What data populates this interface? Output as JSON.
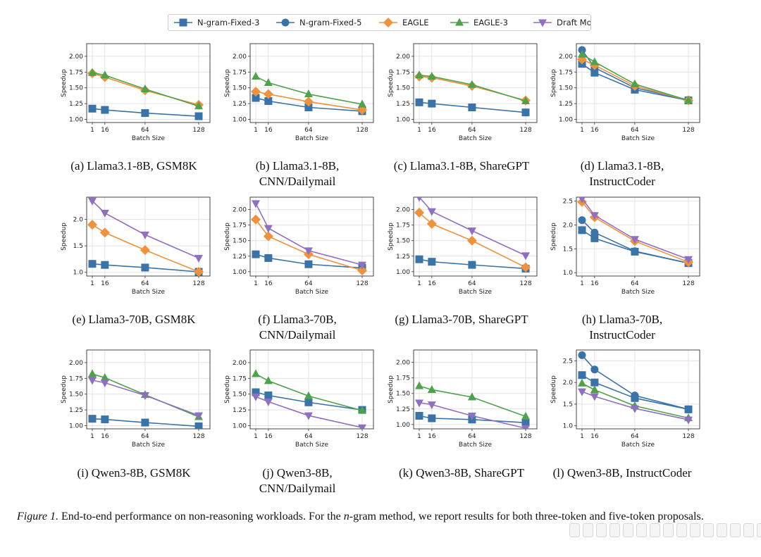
{
  "legend": [
    {
      "name": "N-gram-Fixed-3",
      "color": "#3a73a8",
      "marker": "square"
    },
    {
      "name": "N-gram-Fixed-5",
      "color": "#3a73a8",
      "marker": "circle"
    },
    {
      "name": "EAGLE",
      "color": "#f0913b",
      "marker": "diamond"
    },
    {
      "name": "EAGLE-3",
      "color": "#4da24a",
      "marker": "triangle-up"
    },
    {
      "name": "Draft Model",
      "color": "#8f6fc0",
      "marker": "triangle-down"
    }
  ],
  "chart_data": [
    {
      "type": "line",
      "subcaption": [
        "(a) Llama3.1-8B, GSM8K"
      ],
      "xlabel": "Batch Size",
      "ylabel": "Speedup",
      "x": [
        1,
        16,
        64,
        128
      ],
      "xticks": [
        "1",
        "16",
        "64",
        "128"
      ],
      "yticks": [
        "1.00",
        "1.25",
        "1.50",
        "1.75",
        "2.00"
      ],
      "ylim": [
        0.95,
        2.2
      ],
      "series": [
        {
          "name": "N-gram-Fixed-3",
          "values": [
            1.17,
            1.15,
            1.1,
            1.05
          ]
        },
        {
          "name": "EAGLE",
          "values": [
            1.73,
            1.67,
            1.46,
            1.23
          ]
        },
        {
          "name": "EAGLE-3",
          "values": [
            1.74,
            1.7,
            1.48,
            1.21
          ]
        }
      ]
    },
    {
      "type": "line",
      "subcaption": [
        "(b) Llama3.1-8B,",
        "CNN/Dailymail"
      ],
      "xlabel": "Batch Size",
      "ylabel": "Speedup",
      "x": [
        1,
        16,
        64,
        128
      ],
      "xticks": [
        "1",
        "16",
        "64",
        "128"
      ],
      "yticks": [
        "1.00",
        "1.25",
        "1.50",
        "1.75",
        "2.00"
      ],
      "ylim": [
        0.95,
        2.2
      ],
      "series": [
        {
          "name": "N-gram-Fixed-3",
          "values": [
            1.34,
            1.29,
            1.19,
            1.13
          ]
        },
        {
          "name": "EAGLE",
          "values": [
            1.44,
            1.4,
            1.28,
            1.15
          ]
        },
        {
          "name": "EAGLE-3",
          "values": [
            1.68,
            1.58,
            1.4,
            1.24
          ]
        }
      ]
    },
    {
      "type": "line",
      "subcaption": [
        "(c) Llama3.1-8B, ShareGPT"
      ],
      "xlabel": "Batch Size",
      "ylabel": "Speedup",
      "x": [
        1,
        16,
        64,
        128
      ],
      "xticks": [
        "1",
        "16",
        "64",
        "128"
      ],
      "yticks": [
        "1.00",
        "1.25",
        "1.50",
        "1.75",
        "2.00"
      ],
      "ylim": [
        0.95,
        2.2
      ],
      "series": [
        {
          "name": "N-gram-Fixed-3",
          "values": [
            1.27,
            1.25,
            1.19,
            1.11
          ]
        },
        {
          "name": "EAGLE",
          "values": [
            1.68,
            1.66,
            1.53,
            1.3
          ]
        },
        {
          "name": "EAGLE-3",
          "values": [
            1.7,
            1.68,
            1.55,
            1.29
          ]
        }
      ]
    },
    {
      "type": "line",
      "subcaption": [
        "(d) Llama3.1-8B,",
        "InstructCoder"
      ],
      "xlabel": "Batch Size",
      "ylabel": "Speedup",
      "x": [
        1,
        16,
        64,
        128
      ],
      "xticks": [
        "1",
        "16",
        "64",
        "128"
      ],
      "yticks": [
        "1.00",
        "1.25",
        "1.50",
        "1.75",
        "2.00"
      ],
      "ylim": [
        0.95,
        2.2
      ],
      "series": [
        {
          "name": "N-gram-Fixed-3",
          "values": [
            1.88,
            1.74,
            1.47,
            1.3
          ]
        },
        {
          "name": "N-gram-Fixed-5",
          "values": [
            2.1,
            1.82,
            1.5,
            1.31
          ]
        },
        {
          "name": "EAGLE",
          "values": [
            1.95,
            1.86,
            1.53,
            1.3
          ]
        },
        {
          "name": "EAGLE-3",
          "values": [
            2.03,
            1.91,
            1.56,
            1.3
          ]
        }
      ]
    },
    {
      "type": "line",
      "subcaption": [
        "(e) Llama3-70B, GSM8K"
      ],
      "xlabel": "Batch Size",
      "ylabel": "Speedup",
      "x": [
        1,
        16,
        64,
        128
      ],
      "xticks": [
        "1",
        "16",
        "64",
        "128"
      ],
      "yticks": [
        "1.0",
        "1.5",
        "2.0"
      ],
      "ylim": [
        0.93,
        2.42
      ],
      "series": [
        {
          "name": "N-gram-Fixed-3",
          "values": [
            1.16,
            1.14,
            1.09,
            1.01
          ]
        },
        {
          "name": "EAGLE",
          "values": [
            1.9,
            1.75,
            1.42,
            1.01
          ]
        },
        {
          "name": "Draft Model",
          "values": [
            2.35,
            2.12,
            1.71,
            1.27
          ]
        }
      ]
    },
    {
      "type": "line",
      "subcaption": [
        "(f) Llama3-70B,",
        "CNN/Dailymail"
      ],
      "xlabel": "Batch Size",
      "ylabel": "Speedup",
      "x": [
        1,
        16,
        64,
        128
      ],
      "xticks": [
        "1",
        "16",
        "64",
        "128"
      ],
      "yticks": [
        "1.00",
        "1.25",
        "1.50",
        "1.75",
        "2.00"
      ],
      "ylim": [
        0.93,
        2.2
      ],
      "series": [
        {
          "name": "N-gram-Fixed-3",
          "values": [
            1.28,
            1.22,
            1.12,
            1.06
          ]
        },
        {
          "name": "EAGLE",
          "values": [
            1.84,
            1.57,
            1.28,
            1.02
          ]
        },
        {
          "name": "Draft Model",
          "values": [
            2.1,
            1.7,
            1.34,
            1.11
          ]
        }
      ]
    },
    {
      "type": "line",
      "subcaption": [
        "(g) Llama3-70B, ShareGPT"
      ],
      "xlabel": "Batch Size",
      "ylabel": "Speedup",
      "x": [
        1,
        16,
        64,
        128
      ],
      "xticks": [
        "1",
        "16",
        "64",
        "128"
      ],
      "yticks": [
        "1.00",
        "1.25",
        "1.50",
        "1.75",
        "2.00"
      ],
      "ylim": [
        0.93,
        2.2
      ],
      "series": [
        {
          "name": "N-gram-Fixed-3",
          "values": [
            1.2,
            1.16,
            1.11,
            1.05
          ]
        },
        {
          "name": "EAGLE",
          "values": [
            1.95,
            1.77,
            1.5,
            1.07
          ]
        },
        {
          "name": "Draft Model",
          "values": [
            2.2,
            1.97,
            1.66,
            1.26
          ]
        }
      ]
    },
    {
      "type": "line",
      "subcaption": [
        "(h) Llama3-70B,",
        "InstructCoder"
      ],
      "xlabel": "Batch Size",
      "ylabel": "Speedup",
      "x": [
        1,
        16,
        64,
        128
      ],
      "xticks": [
        "1",
        "16",
        "64",
        "128"
      ],
      "yticks": [
        "1.0",
        "1.5",
        "2.0",
        "2.5"
      ],
      "ylim": [
        0.93,
        2.58
      ],
      "series": [
        {
          "name": "N-gram-Fixed-3",
          "values": [
            1.89,
            1.72,
            1.44,
            1.2
          ]
        },
        {
          "name": "N-gram-Fixed-5",
          "values": [
            2.1,
            1.84,
            1.45,
            1.2
          ]
        },
        {
          "name": "EAGLE",
          "values": [
            2.48,
            2.16,
            1.66,
            1.22
          ]
        },
        {
          "name": "Draft Model",
          "values": [
            2.55,
            2.2,
            1.7,
            1.28
          ]
        }
      ]
    },
    {
      "type": "line",
      "subcaption": [
        "(i) Qwen3-8B, GSM8K"
      ],
      "xlabel": "Batch Size",
      "ylabel": "Speedup",
      "x": [
        1,
        16,
        64,
        128
      ],
      "xticks": [
        "1",
        "16",
        "64",
        "128"
      ],
      "yticks": [
        "1.00",
        "1.25",
        "1.50",
        "1.75",
        "2.00"
      ],
      "ylim": [
        0.95,
        2.2
      ],
      "series": [
        {
          "name": "N-gram-Fixed-3",
          "values": [
            1.11,
            1.1,
            1.05,
            0.99
          ]
        },
        {
          "name": "EAGLE-3",
          "values": [
            1.82,
            1.76,
            1.49,
            1.14
          ]
        },
        {
          "name": "Draft Model",
          "values": [
            1.72,
            1.68,
            1.48,
            1.16
          ]
        }
      ]
    },
    {
      "type": "line",
      "subcaption": [
        "(j) Qwen3-8B,",
        "CNN/Dailymail"
      ],
      "xlabel": "Batch Size",
      "ylabel": "Speedup",
      "x": [
        1,
        16,
        64,
        128
      ],
      "xticks": [
        "1",
        "16",
        "64",
        "128"
      ],
      "yticks": [
        "1.00",
        "1.25",
        "1.50",
        "1.75",
        "2.00"
      ],
      "ylim": [
        0.95,
        2.2
      ],
      "series": [
        {
          "name": "N-gram-Fixed-3",
          "values": [
            1.53,
            1.48,
            1.37,
            1.25
          ]
        },
        {
          "name": "EAGLE-3",
          "values": [
            1.82,
            1.71,
            1.47,
            1.24
          ]
        },
        {
          "name": "Draft Model",
          "values": [
            1.46,
            1.38,
            1.16,
            0.97
          ]
        }
      ]
    },
    {
      "type": "line",
      "subcaption": [
        "(k) Qwen3-8B, ShareGPT"
      ],
      "xlabel": "Batch Size",
      "ylabel": "Speedup",
      "x": [
        1,
        16,
        64,
        128
      ],
      "xticks": [
        "1",
        "16",
        "64",
        "128"
      ],
      "yticks": [
        "1.00",
        "1.25",
        "1.50",
        "1.75",
        "2.00"
      ],
      "ylim": [
        0.93,
        2.2
      ],
      "series": [
        {
          "name": "N-gram-Fixed-3",
          "values": [
            1.14,
            1.1,
            1.08,
            1.03
          ]
        },
        {
          "name": "EAGLE-3",
          "values": [
            1.62,
            1.56,
            1.44,
            1.13
          ]
        },
        {
          "name": "Draft Model",
          "values": [
            1.35,
            1.32,
            1.14,
            0.94
          ]
        }
      ]
    },
    {
      "type": "line",
      "subcaption": [
        "(l) Qwen3-8B, InstructCoder"
      ],
      "xlabel": "Batch Size",
      "ylabel": "Speedup",
      "x": [
        1,
        16,
        64,
        128
      ],
      "xticks": [
        "1",
        "16",
        "64",
        "128"
      ],
      "yticks": [
        "1.0",
        "1.5",
        "2.0",
        "2.5"
      ],
      "ylim": [
        0.93,
        2.75
      ],
      "series": [
        {
          "name": "N-gram-Fixed-3",
          "values": [
            2.17,
            2.0,
            1.64,
            1.38
          ]
        },
        {
          "name": "N-gram-Fixed-5",
          "values": [
            2.63,
            2.3,
            1.7,
            1.38
          ]
        },
        {
          "name": "EAGLE-3",
          "values": [
            1.98,
            1.83,
            1.46,
            1.18
          ]
        },
        {
          "name": "Draft Model",
          "values": [
            1.79,
            1.68,
            1.4,
            1.14
          ]
        }
      ]
    }
  ],
  "caption": {
    "label": "Figure 1.",
    "text_before": " End-to-end performance on non-reasoning workloads. For the ",
    "math": "n",
    "text_after": "-gram method, we report results for both three-token and five-token proposals."
  }
}
